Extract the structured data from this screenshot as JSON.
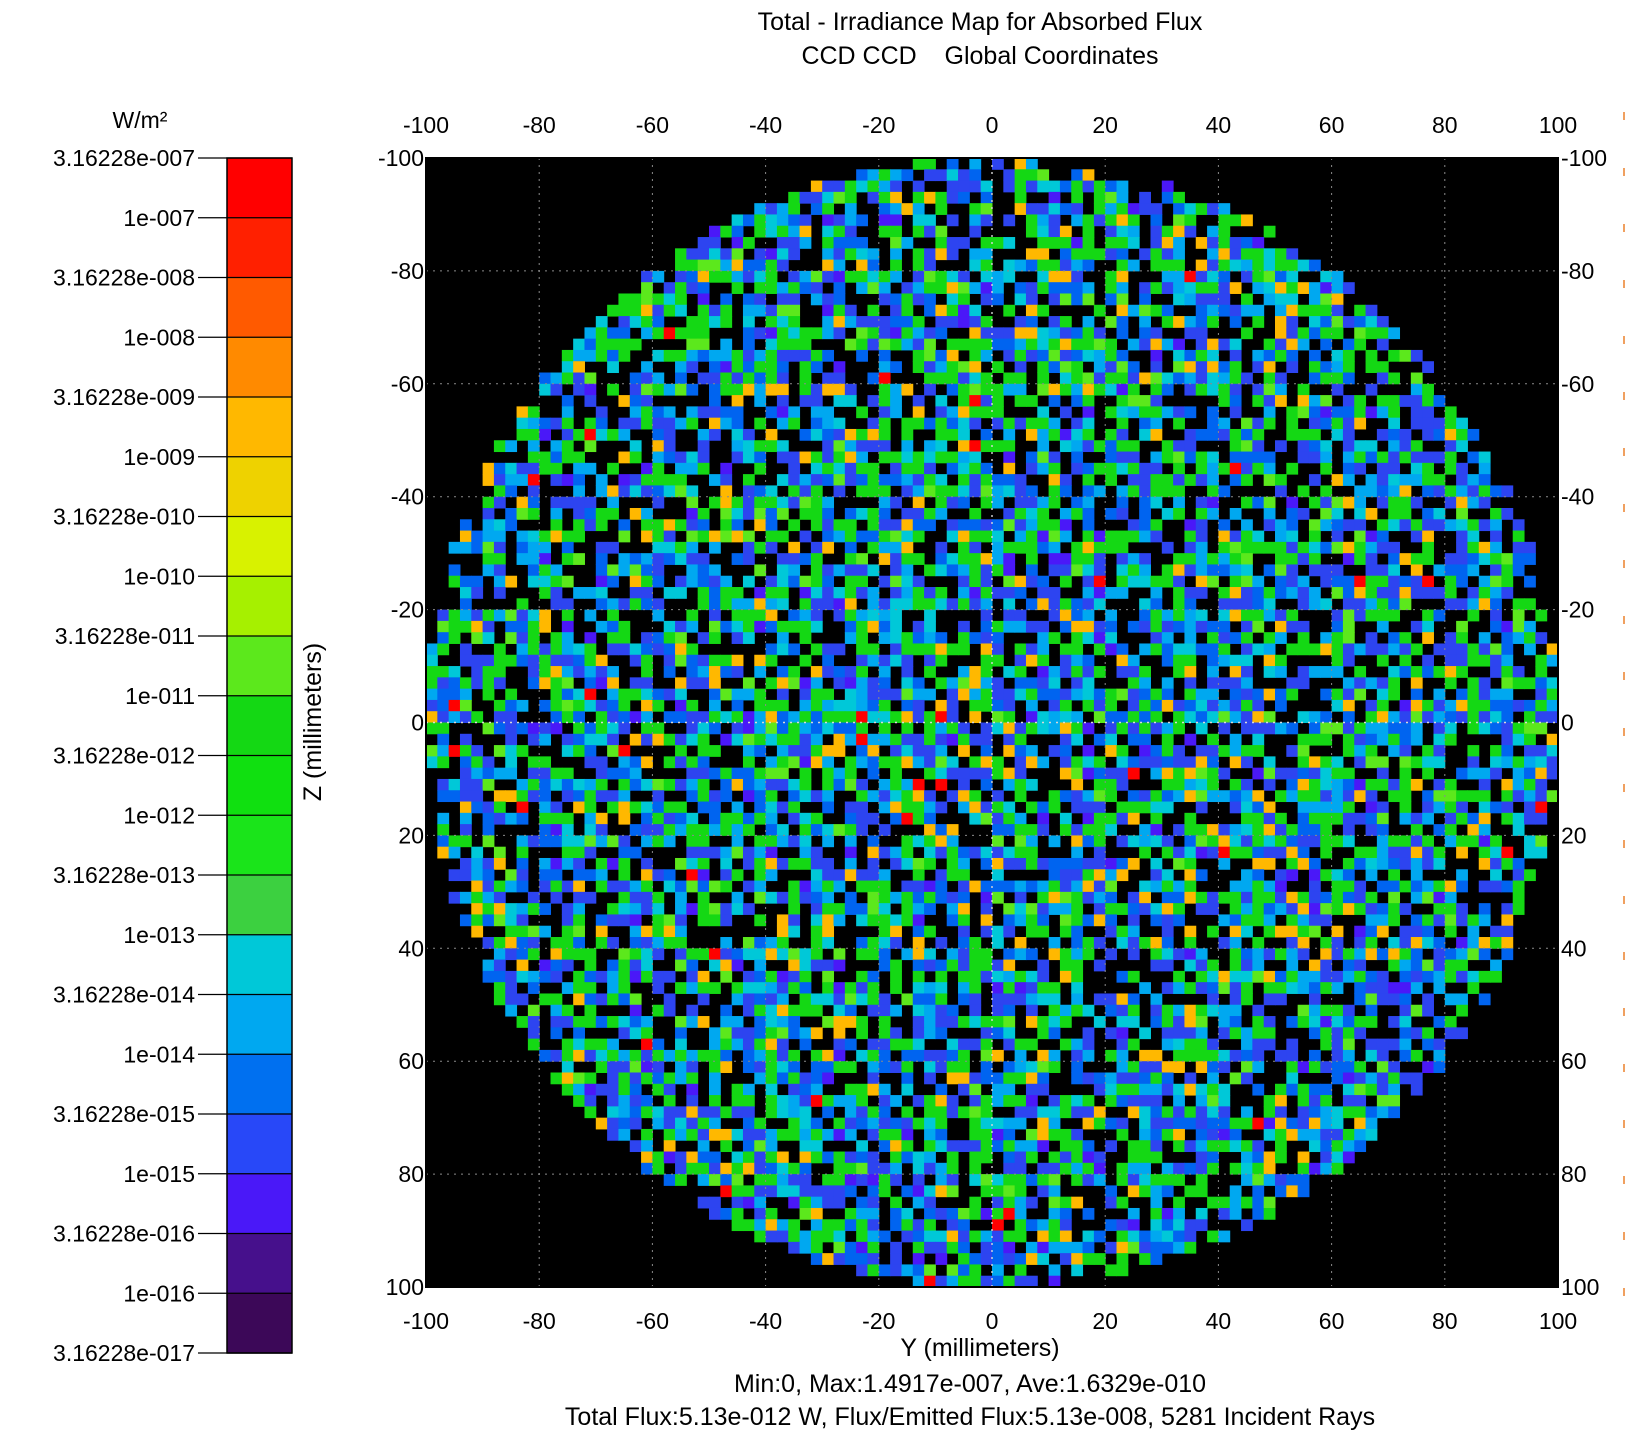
{
  "chart_data": {
    "type": "heatmap",
    "title": "Total - Irradiance Map for Absorbed Flux",
    "subtitle": "CCD CCD    Global Coordinates",
    "xlabel": "Y (millimeters)",
    "ylabel": "Z (millimeters)",
    "xlim": [
      -100,
      100
    ],
    "ylim": [
      -100,
      100
    ],
    "x_ticks": [
      "-100",
      "-80",
      "-60",
      "-40",
      "-20",
      "0",
      "20",
      "40",
      "60",
      "80",
      "100"
    ],
    "y_ticks": [
      "-100",
      "-80",
      "-60",
      "-40",
      "-20",
      "0",
      "20",
      "40",
      "60",
      "80",
      "100"
    ],
    "grid": true,
    "y_axis_direction": "top-to-bottom increasing",
    "detector_shape": "circular, radius 100",
    "grid_cells": 100,
    "colorbar": {
      "unit": "W/m²",
      "scale": "log",
      "labels": [
        "3.16228e-007",
        "1e-007",
        "3.16228e-008",
        "1e-008",
        "3.16228e-009",
        "1e-009",
        "3.16228e-010",
        "1e-010",
        "3.16228e-011",
        "1e-011",
        "3.16228e-012",
        "1e-012",
        "3.16228e-013",
        "1e-013",
        "3.16228e-014",
        "1e-014",
        "3.16228e-015",
        "1e-015",
        "3.16228e-016",
        "1e-016",
        "3.16228e-017"
      ],
      "colors": [
        "#ff0000",
        "#ff2000",
        "#ff5a00",
        "#ff8a00",
        "#ffb800",
        "#eed200",
        "#d8f200",
        "#a6f000",
        "#5ce81c",
        "#14d814",
        "#10e010",
        "#1ae41a",
        "#3cd040",
        "#00c8d8",
        "#00a8f0",
        "#0070f0",
        "#2848f8",
        "#4a18f8",
        "#46108c",
        "#3c0858",
        "#000000"
      ]
    },
    "stats_line1": "Min:0, Max:1.4917e-007, Ave:1.6329e-010",
    "stats_line2": "Total Flux:5.13e-012 W, Flux/Emitted Flux:5.13e-008, 5281 Incident Rays",
    "min": 0,
    "max": 1.4917e-07,
    "average": 1.6329e-10,
    "total_flux_w": 5.13e-12,
    "flux_over_emitted": 5.13e-08,
    "incident_rays": 5281,
    "value_distribution": [
      {
        "color": "#000000",
        "weight": 0.28
      },
      {
        "color": "#2d44f0",
        "weight": 0.16
      },
      {
        "color": "#0064f0",
        "weight": 0.1
      },
      {
        "color": "#00a8f0",
        "weight": 0.1
      },
      {
        "color": "#00c8d8",
        "weight": 0.06
      },
      {
        "color": "#14d814",
        "weight": 0.2
      },
      {
        "color": "#5ce81c",
        "weight": 0.03
      },
      {
        "color": "#ffb800",
        "weight": 0.045
      },
      {
        "color": "#4a18f8",
        "weight": 0.02
      },
      {
        "color": "#ff0000",
        "weight": 0.005
      }
    ]
  }
}
